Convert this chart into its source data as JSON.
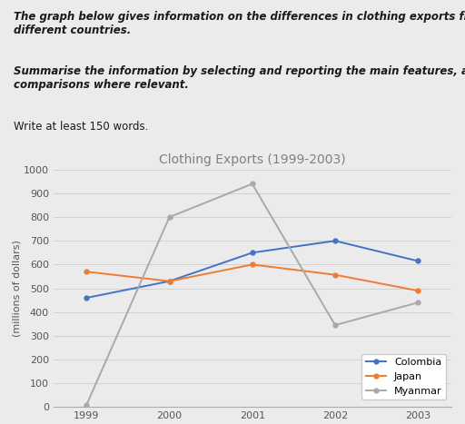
{
  "title": "Clothing Exports (1999-2003)",
  "ylabel": "(millions of dollars)",
  "years": [
    1999,
    2000,
    2001,
    2002,
    2003
  ],
  "colombia": [
    460,
    530,
    650,
    700,
    615
  ],
  "japan": [
    570,
    530,
    600,
    557,
    490
  ],
  "myanmar": [
    10,
    800,
    940,
    345,
    440
  ],
  "colombia_color": "#4472C4",
  "japan_color": "#ED7D31",
  "myanmar_color": "#A9A9A9",
  "ylim": [
    0,
    1000
  ],
  "yticks": [
    0,
    100,
    200,
    300,
    400,
    500,
    600,
    700,
    800,
    900,
    1000
  ],
  "bg_color": "#EBEBEB",
  "chart_bg": "#EBEBEB",
  "text_color": "#555555",
  "title_color": "#808080",
  "title_fontsize": 10,
  "axis_fontsize": 8,
  "legend_fontsize": 8,
  "header1_bold_italic": "The graph below gives information on the differences in clothing exports from three\ndifferent countries.",
  "header2_bold_italic": "Summarise the information by selecting and reporting the main features, and make\ncomparisons where relevant.",
  "header3_normal": "Write at least 150 words."
}
